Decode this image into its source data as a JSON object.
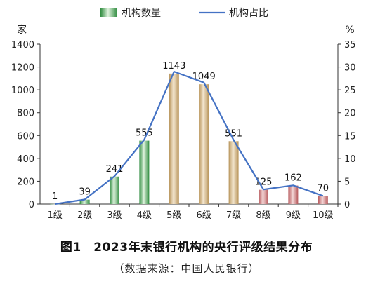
{
  "chart_data": {
    "type": "bar",
    "title": "图1　2023年末银行机构的央行评级结果分布",
    "source": "（数据来源：中国人民银行）",
    "categories": [
      "1级",
      "2级",
      "3级",
      "4级",
      "5级",
      "6级",
      "7级",
      "8级",
      "9级",
      "10级"
    ],
    "series": [
      {
        "name": "机构数量",
        "type": "bar",
        "axis": "left",
        "values": [
          1,
          39,
          241,
          555,
          1143,
          1049,
          551,
          125,
          162,
          70
        ]
      },
      {
        "name": "机构占比",
        "type": "line",
        "axis": "right",
        "values": [
          0.0,
          1.0,
          6.1,
          14.1,
          29.0,
          26.6,
          14.0,
          3.2,
          4.1,
          1.8
        ]
      }
    ],
    "data_labels": [
      "1",
      "39",
      "241",
      "555",
      "1143",
      "1049",
      "551",
      "125",
      "162",
      "70"
    ],
    "ylabel_left": "家",
    "ylabel_right": "%",
    "ylim_left": [
      0,
      1400
    ],
    "ylim_right": [
      0,
      35
    ],
    "yticks_left": [
      "0",
      "200",
      "400",
      "600",
      "800",
      "1000",
      "1200",
      "1400"
    ],
    "yticks_right": [
      "0",
      "5",
      "10",
      "15",
      "20",
      "25",
      "30",
      "35"
    ],
    "legend_position": "top-center",
    "grid": false,
    "colors": {
      "bar_green": "#2e8b3e",
      "bar_gold": "#b8945a",
      "bar_red": "#b5575a",
      "line": "#4472c4"
    }
  }
}
